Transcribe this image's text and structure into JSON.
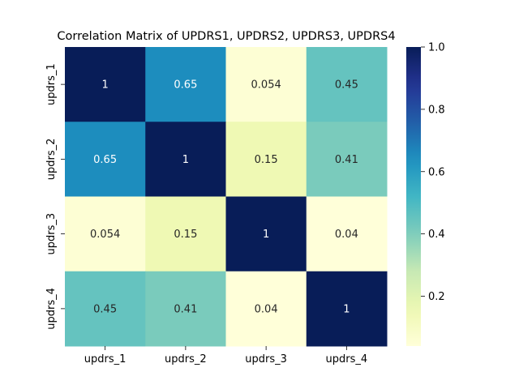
{
  "chart_data": {
    "type": "heatmap",
    "title": "Correlation Matrix of UPDRS1, UPDRS2, UPDRS3, UPDRS4",
    "rows": [
      "updrs_1",
      "updrs_2",
      "updrs_3",
      "updrs_4"
    ],
    "columns": [
      "updrs_1",
      "updrs_2",
      "updrs_3",
      "updrs_4"
    ],
    "values": [
      [
        1,
        0.65,
        0.054,
        0.45
      ],
      [
        0.65,
        1,
        0.15,
        0.41
      ],
      [
        0.054,
        0.15,
        1,
        0.04
      ],
      [
        0.45,
        0.41,
        0.04,
        1
      ]
    ],
    "annotations": [
      [
        "1",
        "0.65",
        "0.054",
        "0.45"
      ],
      [
        "0.65",
        "1",
        "0.15",
        "0.41"
      ],
      [
        "0.054",
        "0.15",
        "1",
        "0.04"
      ],
      [
        "0.45",
        "0.41",
        "0.04",
        "1"
      ]
    ],
    "colormap": "YlGnBu",
    "vmin": 0.04,
    "vmax": 1.0,
    "colorbar_ticks": [
      "0.2",
      "0.4",
      "0.6",
      "0.8",
      "1.0"
    ],
    "grid": false
  }
}
